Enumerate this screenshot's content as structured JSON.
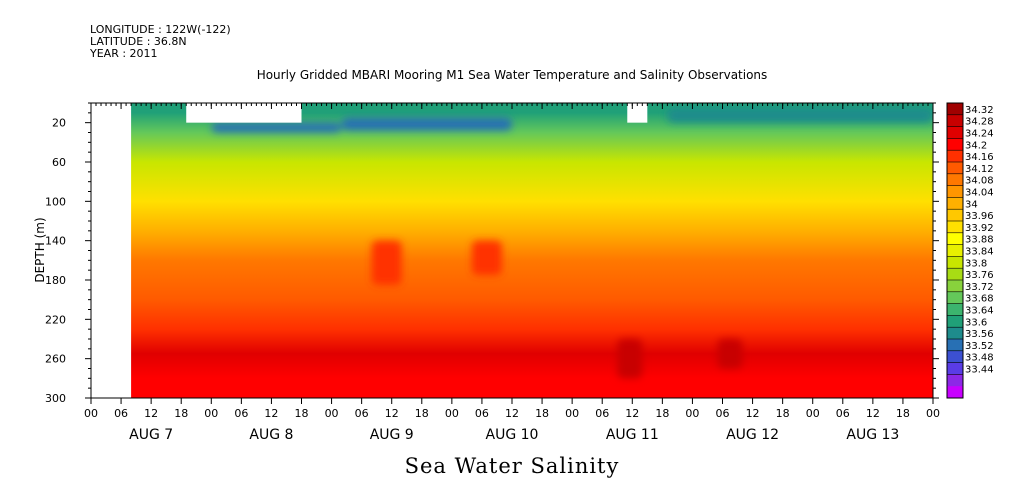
{
  "header": {
    "longitude": "LONGITUDE : 122W(-122)",
    "latitude": "LATITUDE : 36.8N",
    "year": "YEAR : 2011"
  },
  "chart_data": {
    "type": "heatmap",
    "title": "Hourly Gridded MBARI Mooring M1 Sea Water Temperature and Salinity Observations",
    "xlabel": "Sea Water Salinity",
    "ylabel": "DEPTH (m)",
    "x_range_hours": [
      0,
      168
    ],
    "data_start_hour": 8,
    "x_hour_ticks": [
      "00",
      "06",
      "12",
      "18",
      "00",
      "06",
      "12",
      "18",
      "00",
      "06",
      "12",
      "18",
      "00",
      "06",
      "12",
      "18",
      "00",
      "06",
      "12",
      "18",
      "00",
      "06",
      "12",
      "18",
      "00",
      "06",
      "12",
      "18",
      "00"
    ],
    "x_day_labels": [
      "AUG  7",
      "AUG  8",
      "AUG  9",
      "AUG 10",
      "AUG 11",
      "AUG 12",
      "AUG 13"
    ],
    "ylim": [
      300,
      0
    ],
    "y_ticks": [
      20,
      60,
      100,
      140,
      180,
      220,
      260,
      300
    ],
    "colorbar_levels": [
      "34.32",
      "34.28",
      "34.24",
      "34.2",
      "34.16",
      "34.12",
      "34.08",
      "34.04",
      "34",
      "33.96",
      "33.92",
      "33.88",
      "33.84",
      "33.8",
      "33.76",
      "33.72",
      "33.68",
      "33.64",
      "33.6",
      "33.56",
      "33.52",
      "33.48",
      "33.44"
    ],
    "colorbar_colors": [
      "#a00000",
      "#c80000",
      "#e00000",
      "#ff0000",
      "#ff3000",
      "#ff5a00",
      "#ff7800",
      "#ff9600",
      "#ffb000",
      "#ffc800",
      "#ffe000",
      "#ffff00",
      "#e8f000",
      "#c8e600",
      "#a8dc14",
      "#88d23c",
      "#64c85a",
      "#3cb46e",
      "#20a078",
      "#1e8c8c",
      "#2870b4",
      "#3c50d2",
      "#5a3ce6",
      "#8c28e6",
      "#c800ff"
    ],
    "depth_profile": [
      {
        "depth": 10,
        "salinity": 33.6
      },
      {
        "depth": 30,
        "salinity": 33.7
      },
      {
        "depth": 60,
        "salinity": 33.82
      },
      {
        "depth": 100,
        "salinity": 33.92
      },
      {
        "depth": 130,
        "salinity": 34.02
      },
      {
        "depth": 160,
        "salinity": 34.08
      },
      {
        "depth": 200,
        "salinity": 34.12
      },
      {
        "depth": 230,
        "salinity": 34.18
      },
      {
        "depth": 255,
        "salinity": 34.24
      },
      {
        "depth": 280,
        "salinity": 34.22
      },
      {
        "depth": 300,
        "salinity": 34.2
      }
    ],
    "anomalies": [
      {
        "hour_start": 24,
        "hour_end": 50,
        "depth_start": 20,
        "depth_end": 30,
        "salinity": 33.52
      },
      {
        "hour_start": 50,
        "hour_end": 84,
        "depth_start": 15,
        "depth_end": 28,
        "salinity": 33.55
      },
      {
        "hour_start": 115,
        "hour_end": 168,
        "depth_start": 5,
        "depth_end": 20,
        "salinity": 33.58
      },
      {
        "hour_start": 56,
        "hour_end": 62,
        "depth_start": 140,
        "depth_end": 185,
        "salinity": 34.18
      },
      {
        "hour_start": 76,
        "hour_end": 82,
        "depth_start": 140,
        "depth_end": 175,
        "salinity": 34.17
      },
      {
        "hour_start": 105,
        "hour_end": 110,
        "depth_start": 240,
        "depth_end": 280,
        "salinity": 34.3
      },
      {
        "hour_start": 125,
        "hour_end": 130,
        "depth_start": 240,
        "depth_end": 270,
        "salinity": 34.28
      }
    ],
    "missing_blocks": [
      {
        "hour_start": 0,
        "hour_end": 8,
        "depth_start": 0,
        "depth_end": 300
      },
      {
        "hour_start": 19,
        "hour_end": 42,
        "depth_start": 0,
        "depth_end": 20
      },
      {
        "hour_start": 107,
        "hour_end": 111,
        "depth_start": 0,
        "depth_end": 20
      }
    ]
  }
}
